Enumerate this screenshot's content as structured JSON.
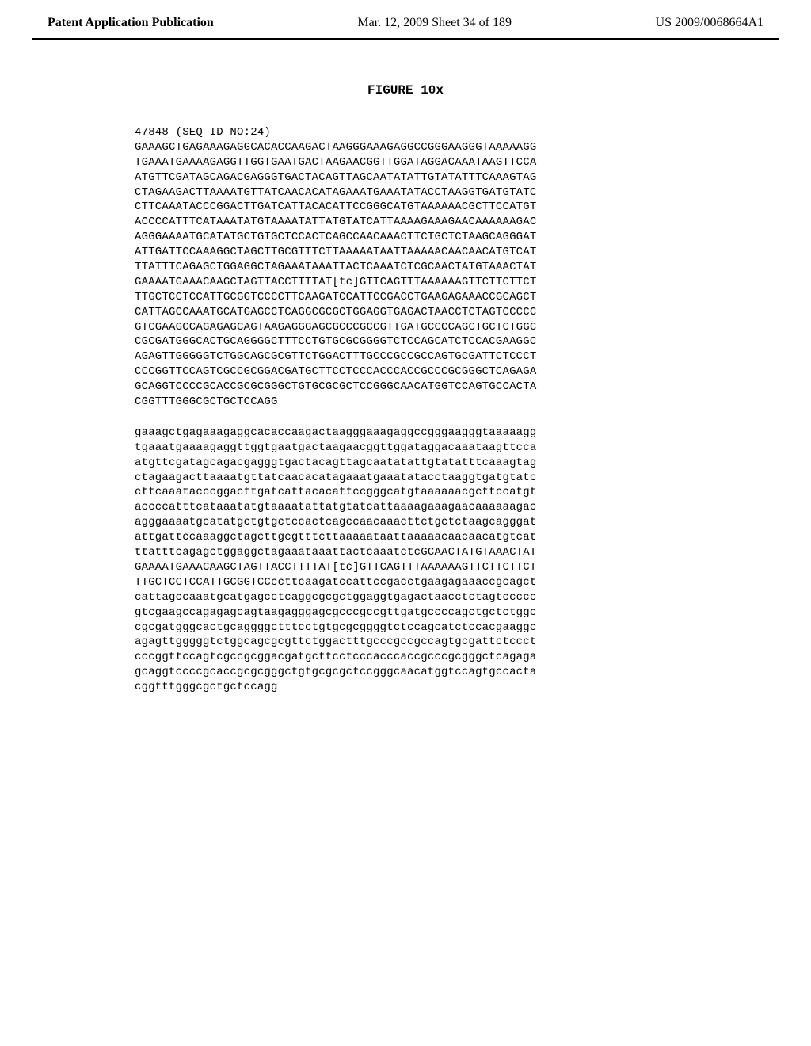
{
  "header": {
    "left": "Patent Application Publication",
    "center": "Mar. 12, 2009  Sheet 34 of 189",
    "right": "US 2009/0068664A1"
  },
  "figure_title": "FIGURE 10x",
  "seq_id_header": "47848 (SEQ ID NO:24)",
  "sequence_upper": [
    "GAAAGCTGAGAAAGAGGCACACCAAGACTAAGGGAAAGAGGCCGGGAAGGGTAAAAAGG",
    "TGAAATGAAAAGAGGTTGGTGAATGACTAAGAACGGTTGGATAGGACAAATAAGTTCCA",
    "ATGTTCGATAGCAGACGAGGGTGACTACAGTTAGCAATATATTGTATATTTCAAAGTAG",
    "CTAGAAGACTTAAAATGTTATCAACACATAGAAATGAAATATACCTAAGGTGATGTATC",
    "CTTCAAATACCCGGACTTGATCATTACACATTCCGGGCATGTAAAAAACGCTTCCATGT",
    "ACCCCATTTCATAAATATGTAAAATATTATGTATCATTAAAAGAAAGAACAAAAAAGAC",
    "AGGGAAAATGCATATGCTGTGCTCCACTCAGCCAACAAACTTCTGCTCTAAGCAGGGAT",
    "ATTGATTCCAAAGGCTAGCTTGCGTTTCTTAAAAATAATTAAAAACAACAACATGTCAT",
    "TTATTTCAGAGCTGGAGGCTAGAAATAAATTACTCAAATCTCGCAACTATGTAAACTAT",
    "GAAAATGAAACAAGCTAGTTACCTTTTAT[tc]GTTCAGTTTAAAAAAGTTCTTCTTCT",
    "TTGCTCCTCCATTGCGGTCCCCTTCAAGATCCATTCCGACCTGAAGAGAAACCGCAGCT",
    "CATTAGCCAAATGCATGAGCCTCAGGCGCGCTGGAGGTGAGACTAACCTCTAGTCCCCC",
    "GTCGAAGCCAGAGAGCAGTAAGAGGGAGCGCCCGCCGTTGATGCCCCAGCTGCTCTGGC",
    "CGCGATGGGCACTGCAGGGGCTTTCCTGTGCGCGGGGTCTCCAGCATCTCCACGAAGGC",
    "AGAGTTGGGGGTCTGGCAGCGCGTTCTGGACTTTGCCCGCCGCCAGTGCGATTCTCCCT",
    "CCCGGTTCCAGTCGCCGCGGACGATGCTTCCTCCCACCCACCGCCCGCGGGCTCAGAGA",
    "GCAGGTCCCCGCACCGCGCGGGCTGTGCGCGCTCCGGGCAACATGGTCCAGTGCCACTA",
    "CGGTTTGGGCGCTGCTCCAGG"
  ],
  "sequence_lower": [
    "gaaagctgagaaagaggcacaccaagactaagggaaagaggccgggaagggtaaaaagg",
    "tgaaatgaaaagaggttggtgaatgactaagaacggttggataggacaaataagttcca",
    "atgttcgatagcagacgagggtgactacagttagcaatatattgtatatttcaaagtag",
    "ctagaagacttaaaatgttatcaacacatagaaatgaaatatacctaaggtgatgtatc",
    "cttcaaatacccggacttgatcattacacattccgggcatgtaaaaaacgcttccatgt",
    "accccatttcataaatatgtaaaatattatgtatcattaaaagaaagaacaaaaaagac",
    "agggaaaatgcatatgctgtgctccactcagccaacaaacttctgctctaagcagggat",
    "attgattccaaaggctagcttgcgtttcttaaaaataattaaaaacaacaacatgtcat",
    "ttatttcagagctggaggctagaaataaattactcaaatctcGCAACTATGTAAACTAT",
    "GAAAATGAAACAAGCTAGTTACCTTTTAT[tc]GTTCAGTTTAAAAAAGTTCTTCTTCT",
    "TTGCTCCTCCATTGCGGTCCccttcaagatccattccgacctgaagagaaaccgcagct",
    "cattagccaaatgcatgagcctcaggcgcgctggaggtgagactaacctctagtccccc",
    "gtcgaagccagagagcagtaagagggagcgcccgccgttgatgccccagctgctctggc",
    "cgcgatgggcactgcaggggctttcctgtgcgcggggtctccagcatctccacgaaggc",
    "agagttgggggtctggcagcgcgttctggactttgcccgccgccagtgcgattctccct",
    "cccggttccagtcgccgcggacgatgcttcctcccacccaccgcccgcgggctcagaga",
    "gcaggtccccgcaccgcgcgggctgtgcgcgctccgggcaacatggtccagtgccacta",
    "cggtttgggcgctgctccagg"
  ]
}
